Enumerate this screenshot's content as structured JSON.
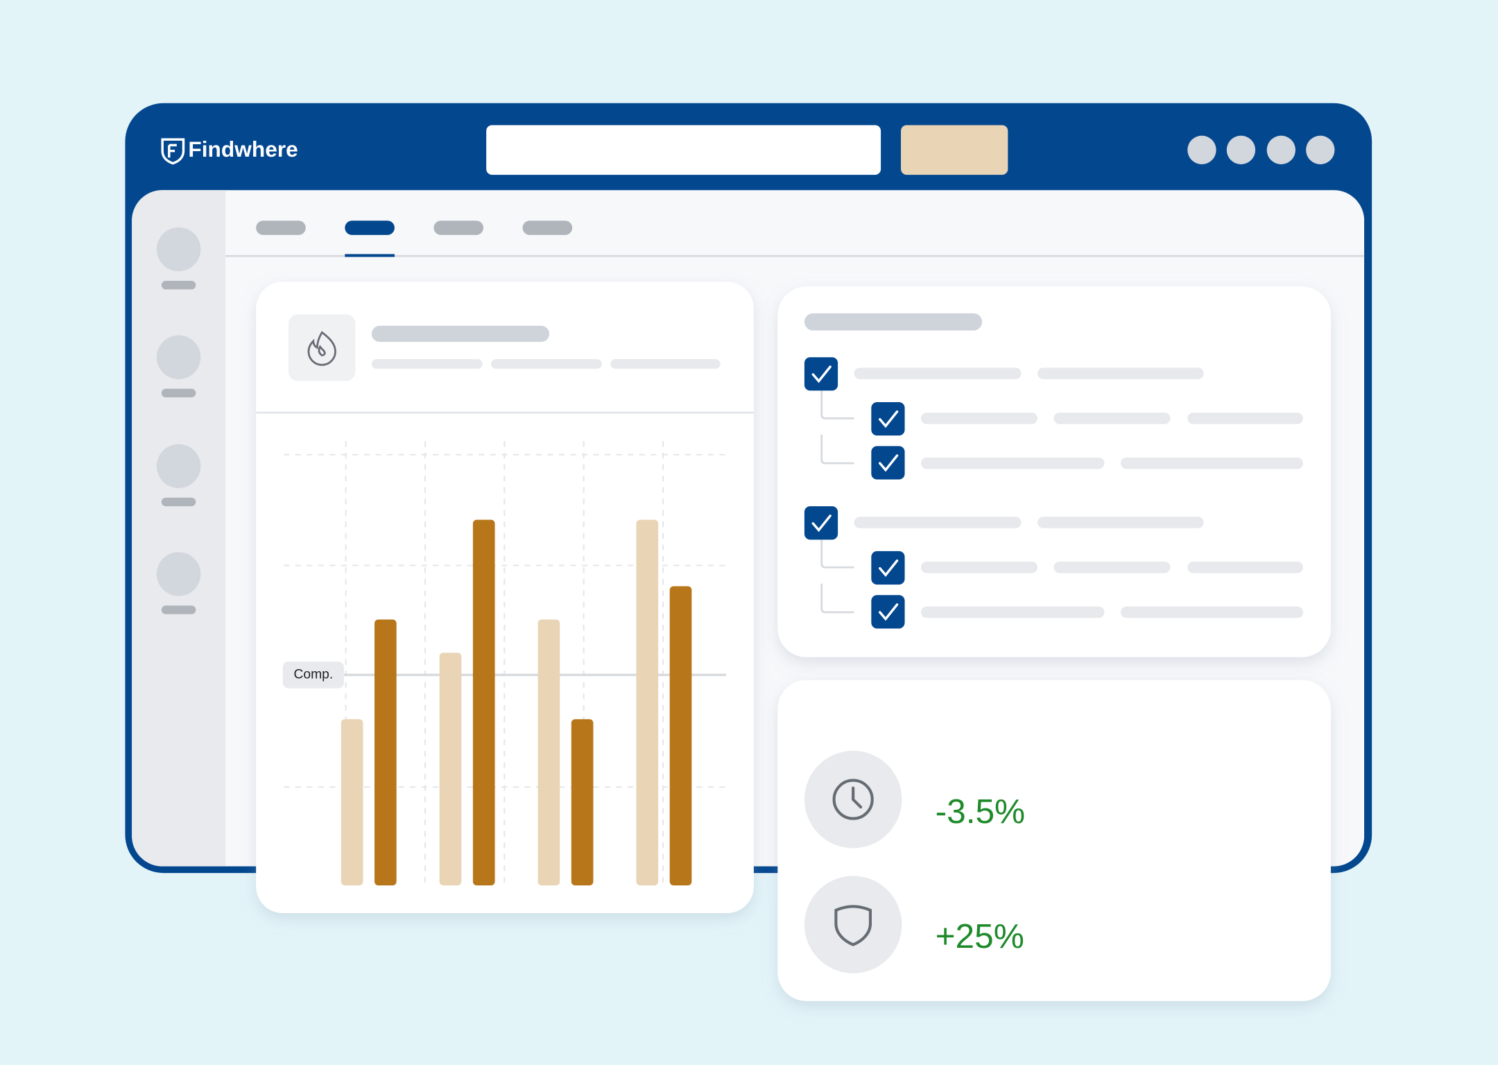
{
  "header": {
    "brand": "Findwhere"
  },
  "chart": {
    "ylim": [
      0,
      4
    ],
    "series": [
      {
        "color": "#e9d5b5",
        "values": [
          1.5,
          2.1,
          2.4,
          3.3
        ]
      },
      {
        "color": "#b8761a",
        "values": [
          2.4,
          3.3,
          1.5,
          2.7
        ]
      }
    ],
    "reference": {
      "label": "Comp.",
      "value": 1.9
    }
  },
  "metrics": [
    {
      "value": "-3.5%"
    },
    {
      "value": "+25%"
    }
  ]
}
